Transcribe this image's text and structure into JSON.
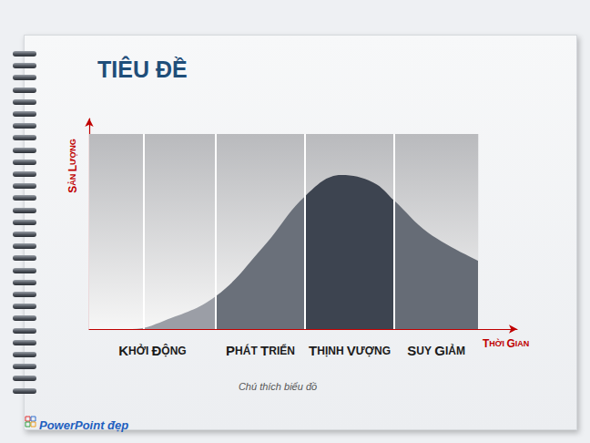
{
  "chart_data": {
    "type": "area",
    "title": "TIÊU ĐỀ",
    "x_label": "THỜI GIAN",
    "y_label": "SẢN LƯỢNG",
    "caption": "Chú thích biểu đồ",
    "footer": "PowerPoint đẹp",
    "x": [
      0,
      11,
      19.2,
      32.5,
      44.9,
      55.5,
      64.8,
      73,
      78.4,
      87.1,
      100
    ],
    "values": [
      0,
      0,
      4.2,
      16.8,
      42.5,
      68.2,
      79,
      75.2,
      65.9,
      49.5,
      35
    ],
    "xlim": [
      0,
      110
    ],
    "ylim": [
      0,
      108
    ],
    "tick_labels": false,
    "grid": false,
    "stages": [
      {
        "label": "KHỞI ĐỘNG",
        "from": 0,
        "to": 32.5,
        "color": "#9b9ea6"
      },
      {
        "label": "PHÁT TRIỂN",
        "from": 32.5,
        "to": 55.5,
        "color": "#6a707a"
      },
      {
        "label": "THỊNH VƯỢNG",
        "from": 55.5,
        "to": 78.4,
        "color": "#3d4450"
      },
      {
        "label": "SUY GIẢM",
        "from": 78.4,
        "to": 100,
        "color": "#666c76"
      }
    ],
    "dividers": [
      14,
      32.5,
      55.5,
      78.4
    ],
    "band": {
      "x": [
        0,
        100
      ],
      "y": [
        0,
        100
      ]
    }
  }
}
